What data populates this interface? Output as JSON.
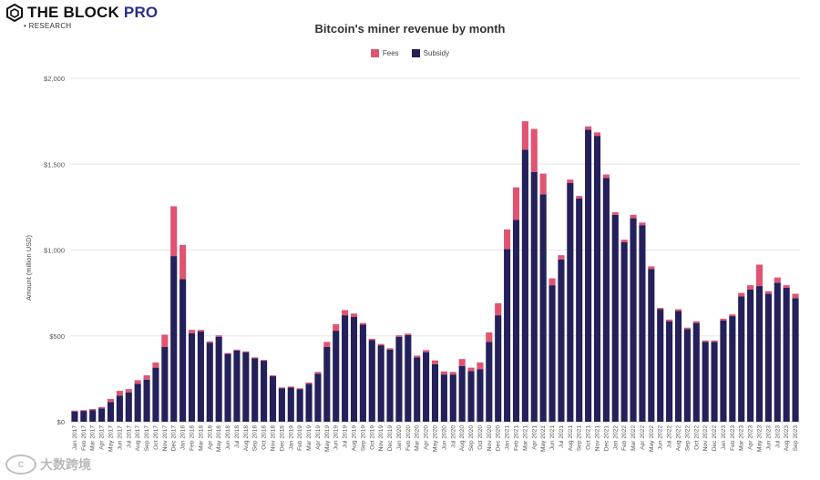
{
  "brand": {
    "name_main": "THE BLOCK",
    "name_pro": "PRO",
    "sub": "• RESEARCH"
  },
  "watermark": {
    "icon": "C",
    "text": "大数跨境"
  },
  "colors": {
    "fees": "#e05472",
    "subsidy": "#23205a",
    "grid": "#e6e6e6",
    "axis": "#cccccc"
  },
  "chart_data": {
    "type": "bar",
    "stacked": true,
    "title": "Bitcoin's miner revenue by month",
    "xlabel": "",
    "ylabel": "Amount (million USD)",
    "ylim": [
      0,
      2000
    ],
    "yticks": [
      0,
      500,
      1000,
      1500,
      2000
    ],
    "ytick_labels": [
      "$0",
      "$500",
      "$1,000",
      "$1,500",
      "$2,000"
    ],
    "legend": [
      "Fees",
      "Subsidy"
    ],
    "legend_position": "top-center",
    "categories": [
      "Jan 2017",
      "Feb 2017",
      "Mar 2017",
      "Apr 2017",
      "May 2017",
      "Jun 2017",
      "Jul 2017",
      "Aug 2017",
      "Sep 2017",
      "Oct 2017",
      "Nov 2017",
      "Dec 2017",
      "Jan 2018",
      "Feb 2018",
      "Mar 2018",
      "Apr 2018",
      "May 2018",
      "Jun 2018",
      "Jul 2018",
      "Aug 2018",
      "Sep 2018",
      "Oct 2018",
      "Nov 2018",
      "Dec 2018",
      "Jan 2019",
      "Feb 2019",
      "Mar 2019",
      "Apr 2019",
      "May 2019",
      "Jun 2019",
      "Jul 2019",
      "Aug 2019",
      "Sep 2019",
      "Oct 2019",
      "Nov 2019",
      "Dec 2019",
      "Jan 2020",
      "Feb 2020",
      "Mar 2020",
      "Apr 2020",
      "May 2020",
      "Jun 2020",
      "Jul 2020",
      "Aug 2020",
      "Sep 2020",
      "Oct 2020",
      "Nov 2020",
      "Dec 2020",
      "Jan 2021",
      "Feb 2021",
      "Mar 2021",
      "Apr 2021",
      "May 2021",
      "Jun 2021",
      "Jul 2021",
      "Aug 2021",
      "Sep 2021",
      "Oct 2021",
      "Nov 2021",
      "Dec 2021",
      "Jan 2022",
      "Feb 2022",
      "Mar 2022",
      "Apr 2022",
      "May 2022",
      "Jun 2022",
      "Jul 2022",
      "Aug 2022",
      "Sep 2022",
      "Oct 2022",
      "Nov 2022",
      "Dec 2022",
      "Jan 2023",
      "Feb 2023",
      "Mar 2023",
      "Apr 2023",
      "May 2023",
      "Jun 2023",
      "Jul 2023",
      "Aug 2023",
      "Sep 2023"
    ],
    "series": [
      {
        "name": "Subsidy",
        "values": [
          60,
          63,
          68,
          78,
          115,
          152,
          170,
          220,
          245,
          315,
          435,
          965,
          830,
          515,
          525,
          460,
          495,
          395,
          415,
          405,
          370,
          355,
          265,
          195,
          200,
          190,
          220,
          280,
          435,
          530,
          620,
          610,
          565,
          475,
          445,
          420,
          495,
          505,
          375,
          405,
          335,
          275,
          275,
          325,
          295,
          305,
          465,
          620,
          1005,
          1175,
          1585,
          1455,
          1325,
          795,
          945,
          1390,
          1300,
          1700,
          1665,
          1420,
          1205,
          1045,
          1185,
          1145,
          890,
          655,
          585,
          645,
          540,
          575,
          465,
          465,
          590,
          615,
          730,
          770,
          790,
          745,
          810,
          780,
          720
        ]
      },
      {
        "name": "Fees",
        "values": [
          5,
          5,
          6,
          8,
          18,
          28,
          20,
          22,
          25,
          30,
          72,
          290,
          200,
          20,
          10,
          8,
          8,
          5,
          5,
          5,
          5,
          5,
          5,
          5,
          5,
          5,
          8,
          10,
          30,
          38,
          30,
          20,
          10,
          8,
          8,
          8,
          8,
          8,
          10,
          12,
          22,
          18,
          15,
          40,
          20,
          40,
          55,
          70,
          115,
          190,
          165,
          250,
          120,
          40,
          25,
          20,
          15,
          20,
          20,
          20,
          15,
          15,
          20,
          15,
          15,
          8,
          10,
          10,
          8,
          10,
          8,
          8,
          10,
          10,
          20,
          25,
          125,
          15,
          30,
          15,
          25
        ]
      }
    ]
  }
}
